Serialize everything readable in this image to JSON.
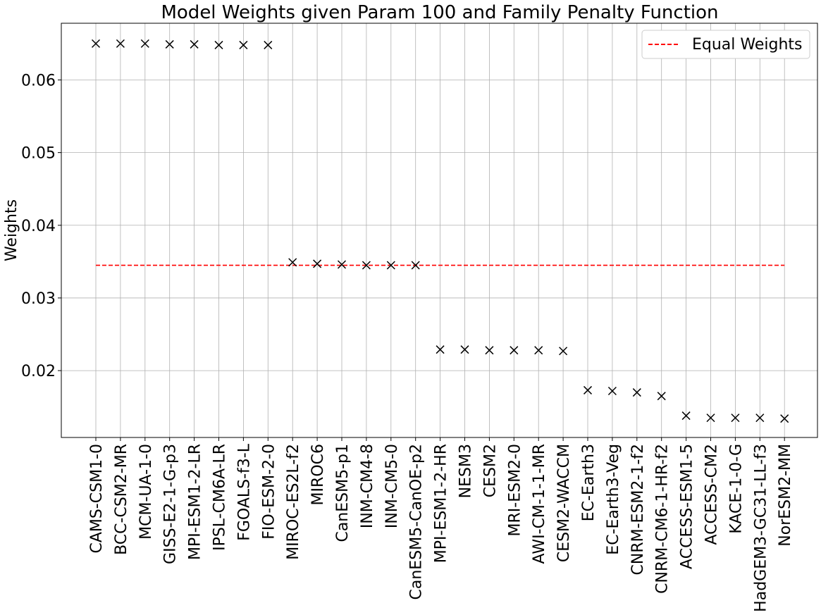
{
  "chart_data": {
    "type": "scatter",
    "title": "Model Weights given Param 100 and Family Penalty Function",
    "xlabel": "",
    "ylabel": "Weights",
    "ylim": [
      0.0108,
      0.0678
    ],
    "yticks": [
      0.02,
      0.03,
      0.04,
      0.05,
      0.06
    ],
    "ytick_labels": [
      "0.02",
      "0.03",
      "0.04",
      "0.05",
      "0.06"
    ],
    "grid": true,
    "legend_position": "top-right",
    "marker": "x",
    "marker_color": "#000000",
    "categories": [
      "CAMS-CSM1-0",
      "BCC-CSM2-MR",
      "MCM-UA-1-0",
      "GISS-E2-1-G-p3",
      "MPI-ESM1-2-LR",
      "IPSL-CM6A-LR",
      "FGOALS-f3-L",
      "FIO-ESM-2-0",
      "MIROC-ES2L-f2",
      "MIROC6",
      "CanESM5-p1",
      "INM-CM4-8",
      "INM-CM5-0",
      "CanESM5-CanOE-p2",
      "MPI-ESM1-2-HR",
      "NESM3",
      "CESM2",
      "MRI-ESM2-0",
      "AWI-CM-1-1-MR",
      "CESM2-WACCM",
      "EC-Earth3",
      "EC-Earth3-Veg",
      "CNRM-ESM2-1-f2",
      "CNRM-CM6-1-HR-f2",
      "ACCESS-ESM1-5",
      "ACCESS-CM2",
      "KACE-1-0-G",
      "HadGEM3-GC31-LL-f3",
      "NorESM2-MM"
    ],
    "values": [
      0.065,
      0.065,
      0.065,
      0.0649,
      0.0649,
      0.0648,
      0.0648,
      0.0648,
      0.0349,
      0.0347,
      0.0346,
      0.0345,
      0.0345,
      0.0345,
      0.0229,
      0.0229,
      0.0228,
      0.0228,
      0.0228,
      0.0227,
      0.0173,
      0.0172,
      0.017,
      0.0165,
      0.0138,
      0.0135,
      0.0135,
      0.0135,
      0.0134
    ],
    "equal_weights": {
      "name": "Equal Weights",
      "value": 0.0345,
      "color": "#ff0000",
      "style": "dashed"
    }
  }
}
